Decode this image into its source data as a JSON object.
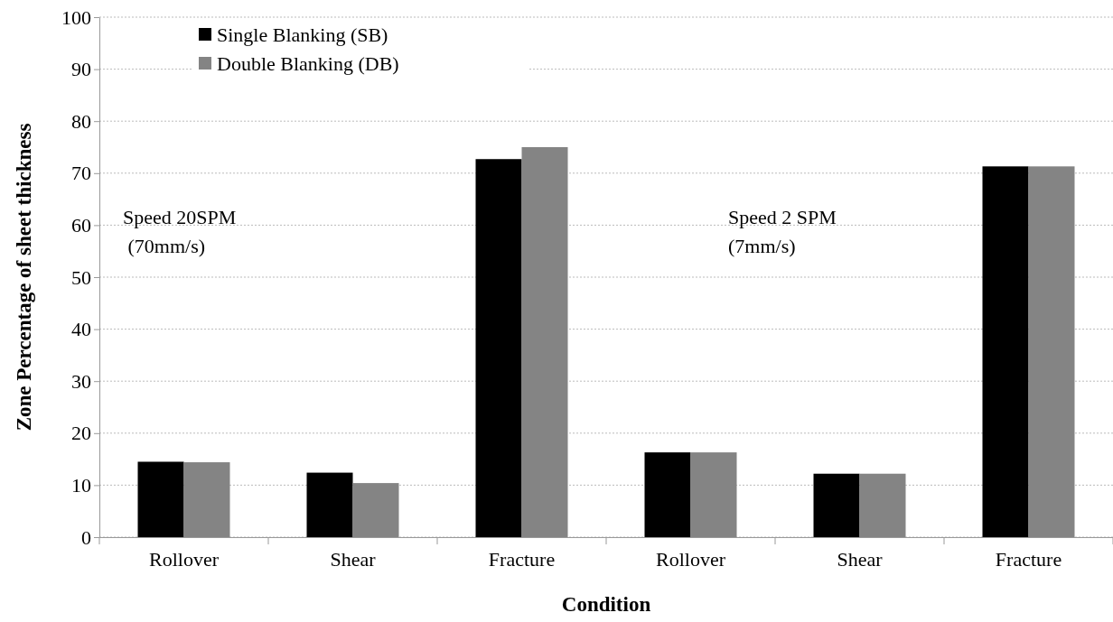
{
  "chart_data": {
    "type": "bar",
    "xlabel": "Condition",
    "ylabel": "Zone Percentage of sheet thickness",
    "categories": [
      "Rollover",
      "Shear",
      "Fracture",
      "Rollover",
      "Shear",
      "Fracture"
    ],
    "series": [
      {
        "name": "Single Blanking (SB)",
        "color": "#000000",
        "values": [
          14.5,
          12.4,
          72.7,
          16.3,
          12.2,
          71.3
        ]
      },
      {
        "name": "Double Blanking (DB)",
        "color": "#848484",
        "values": [
          14.4,
          10.4,
          75.0,
          16.3,
          12.2,
          71.3
        ]
      }
    ],
    "ylim": [
      0,
      100
    ],
    "yticks": [
      0,
      10,
      20,
      30,
      40,
      50,
      60,
      70,
      80,
      90,
      100
    ],
    "grid": "y",
    "legend": "top left",
    "annotations": [
      "Speed 20SPM\n (70mm/s)",
      "Speed 2 SPM\n(7mm/s)"
    ]
  }
}
